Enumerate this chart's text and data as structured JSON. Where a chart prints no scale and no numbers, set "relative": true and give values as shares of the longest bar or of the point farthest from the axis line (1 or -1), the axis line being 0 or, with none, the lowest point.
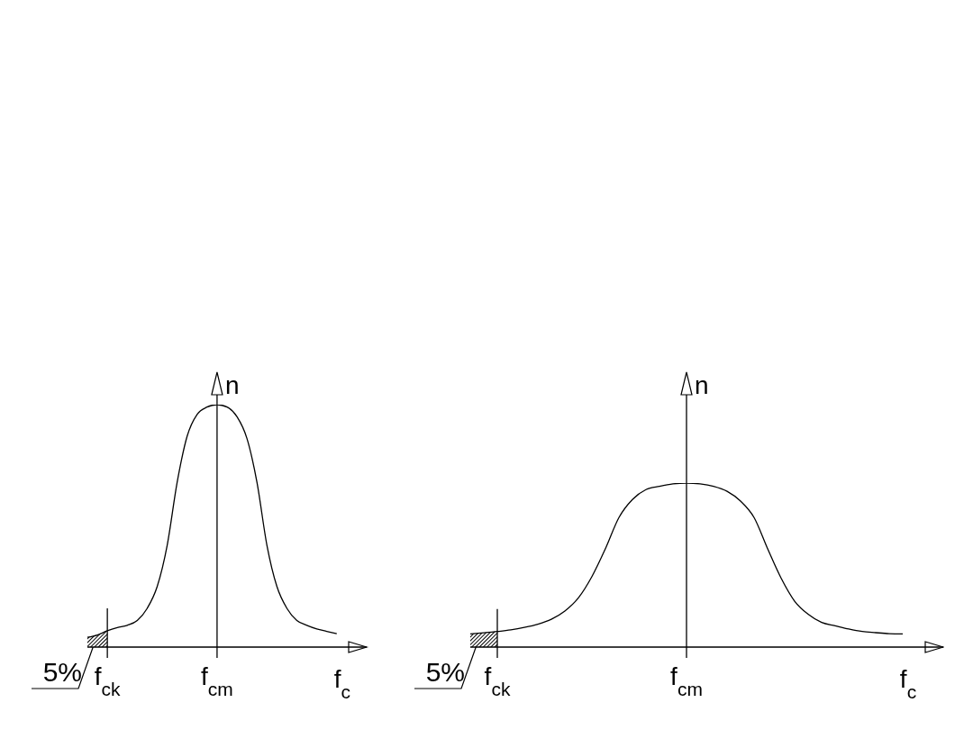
{
  "chart_data": [
    {
      "type": "line",
      "relative": true,
      "xlabel": "f$_{c}$",
      "ylabel": "n",
      "categories": [
        null,
        null,
        "f$_{ck}$",
        null,
        null,
        null,
        null,
        null,
        null,
        null,
        null,
        null,
        null,
        "f$_{cm}$",
        null,
        null,
        null,
        null,
        null,
        null,
        null,
        null,
        null,
        null,
        null,
        null,
        null,
        null,
        null
      ],
      "series": [
        {
          "color": "#000000",
          "values": [
            0.04,
            0.05,
            0.067,
            0.08,
            0.09,
            0.11,
            0.16,
            0.25,
            0.42,
            0.68,
            0.87,
            0.96,
            0.99,
            1,
            0.99,
            0.95,
            0.86,
            0.68,
            0.42,
            0.25,
            0.16,
            0.11,
            0.09,
            0.075,
            0.065,
            0.055,
            null,
            null,
            null
          ]
        },
        {
          "type": "area",
          "color": "#000000",
          "values": [
            0.04,
            0.05,
            0.067,
            null,
            null,
            null,
            null,
            null,
            null,
            null,
            null,
            null,
            null,
            null,
            null,
            null,
            null,
            null,
            null,
            null,
            null,
            null,
            null,
            null,
            null,
            null,
            null,
            null,
            null
          ]
        }
      ],
      "annotations": [
        "5%"
      ]
    },
    {
      "type": "line",
      "relative": true,
      "xlabel": "f$_{c}$",
      "ylabel": "n",
      "categories": [
        null,
        null,
        "f$_{ck}$",
        null,
        null,
        null,
        null,
        null,
        null,
        null,
        null,
        null,
        null,
        null,
        null,
        null,
        "f$_{cm}$",
        null,
        null,
        null,
        null,
        null,
        null,
        null,
        null,
        null,
        null,
        null,
        null,
        null,
        null,
        null,
        null,
        null,
        null,
        null
      ],
      "series": [
        {
          "color": "#000000",
          "values": [
            0.08,
            0.087,
            0.095,
            0.105,
            0.12,
            0.14,
            0.17,
            0.22,
            0.3,
            0.43,
            0.6,
            0.79,
            0.9,
            0.96,
            0.98,
            0.995,
            1,
            0.995,
            0.98,
            0.95,
            0.89,
            0.79,
            0.6,
            0.42,
            0.28,
            0.2,
            0.15,
            0.13,
            0.11,
            0.095,
            0.088,
            0.082,
            0.08,
            null,
            null,
            null
          ]
        },
        {
          "type": "area",
          "color": "#000000",
          "values": [
            0.08,
            0.087,
            0.095,
            null,
            null,
            null,
            null,
            null,
            null,
            null,
            null,
            null,
            null,
            null,
            null,
            null,
            null,
            null,
            null,
            null,
            null,
            null,
            null,
            null,
            null,
            null,
            null,
            null,
            null,
            null,
            null,
            null,
            null,
            null,
            null,
            null
          ]
        }
      ],
      "annotations": [
        "5%"
      ]
    }
  ]
}
